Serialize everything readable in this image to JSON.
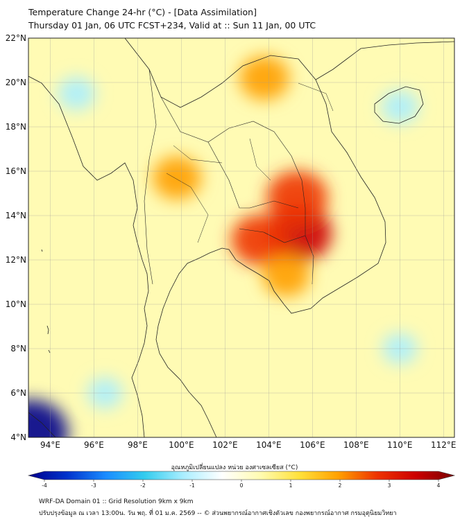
{
  "title": {
    "line1": "Temperature Change 24-hr (°C) - [Data Assimilation]",
    "line2": "Thursday 01 Jan, 06 UTC FCST+234, Valid at :: Sun 11 Jan, 00 UTC"
  },
  "map": {
    "lat_range": [
      4,
      22
    ],
    "lon_range": [
      93,
      112.5
    ],
    "lat_ticks": [
      "4°N",
      "6°N",
      "8°N",
      "10°N",
      "12°N",
      "14°N",
      "16°N",
      "18°N",
      "20°N",
      "22°N"
    ],
    "lon_ticks": [
      "94°E",
      "96°E",
      "98°E",
      "100°E",
      "102°E",
      "104°E",
      "106°E",
      "108°E",
      "110°E",
      "112°E"
    ],
    "grid": true,
    "hotspots": [
      {
        "lon": 105.4,
        "lat": 13.2,
        "value": 3.2
      },
      {
        "lon": 105.3,
        "lat": 14.8,
        "value": 2.9
      },
      {
        "lon": 103.6,
        "lat": 12.9,
        "value": 2.6
      },
      {
        "lon": 99.8,
        "lat": 15.7,
        "value": 1.9
      },
      {
        "lon": 103.8,
        "lat": 20.2,
        "value": 2.0
      },
      {
        "lon": 104.8,
        "lat": 11.3,
        "value": 1.8
      }
    ],
    "coldspots": [
      {
        "lon": 93.1,
        "lat": 4.2,
        "value": -4.0
      },
      {
        "lon": 95.2,
        "lat": 19.5,
        "value": -1.0
      },
      {
        "lon": 110.0,
        "lat": 18.9,
        "value": -1.0
      },
      {
        "lon": 110.0,
        "lat": 8.0,
        "value": -0.8
      },
      {
        "lon": 96.5,
        "lat": 6.0,
        "value": -0.8
      }
    ]
  },
  "colorbar": {
    "label": "อุณหภูมิเปลี่ยนแปลง หน่วย องศาเซลเซียส (°C)",
    "min": -4,
    "max": 4,
    "ticks": [
      "-4",
      "-3",
      "-2",
      "-1",
      "0",
      "1",
      "2",
      "3",
      "4"
    ],
    "colors": [
      "#00008b",
      "#0033cc",
      "#1a8cff",
      "#33ccee",
      "#aaeeff",
      "#ffffff",
      "#fffbb0",
      "#ffe13a",
      "#ffa000",
      "#ee3300",
      "#cc0000",
      "#7a0000"
    ]
  },
  "footer": {
    "line1": "WRF-DA Domain 01 :: Grid Resolution 9km x 9km",
    "line2": "ปรับปรุงข้อมูล ณ เวลา 13:00น. วัน พฤ. ที่ 01 ม.ค. 2569 -- © ส่วนพยากรณ์อากาศเชิงตัวเลข กองพยากรณ์อากาศ กรมอุตุนิยมวิทยา"
  }
}
